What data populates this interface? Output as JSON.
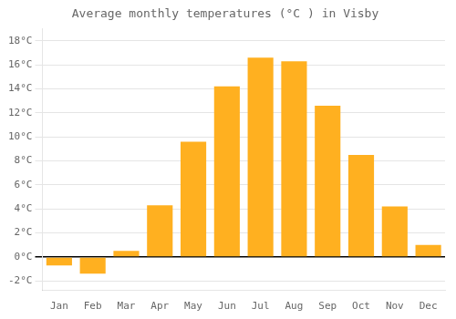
{
  "chart_data": {
    "type": "bar",
    "title": "Average monthly temperatures (°C ) in Visby",
    "categories": [
      "Jan",
      "Feb",
      "Mar",
      "Apr",
      "May",
      "Jun",
      "Jul",
      "Aug",
      "Sep",
      "Oct",
      "Nov",
      "Dec"
    ],
    "values": [
      -0.7,
      -1.4,
      0.5,
      4.3,
      9.6,
      14.2,
      16.6,
      16.3,
      12.6,
      8.5,
      4.2,
      1.0
    ],
    "color": "#FFB020",
    "ylim": [
      -2.8,
      19.0
    ],
    "yticks": [
      {
        "value": -2,
        "label": "-2°C"
      },
      {
        "value": 0,
        "label": "0°C"
      },
      {
        "value": 2,
        "label": "2°C"
      },
      {
        "value": 4,
        "label": "4°C"
      },
      {
        "value": 6,
        "label": "6°C"
      },
      {
        "value": 8,
        "label": "8°C"
      },
      {
        "value": 10,
        "label": "10°C"
      },
      {
        "value": 12,
        "label": "12°C"
      },
      {
        "value": 14,
        "label": "14°C"
      },
      {
        "value": 16,
        "label": "16°C"
      },
      {
        "value": 18,
        "label": "18°C"
      }
    ],
    "grid": true
  }
}
